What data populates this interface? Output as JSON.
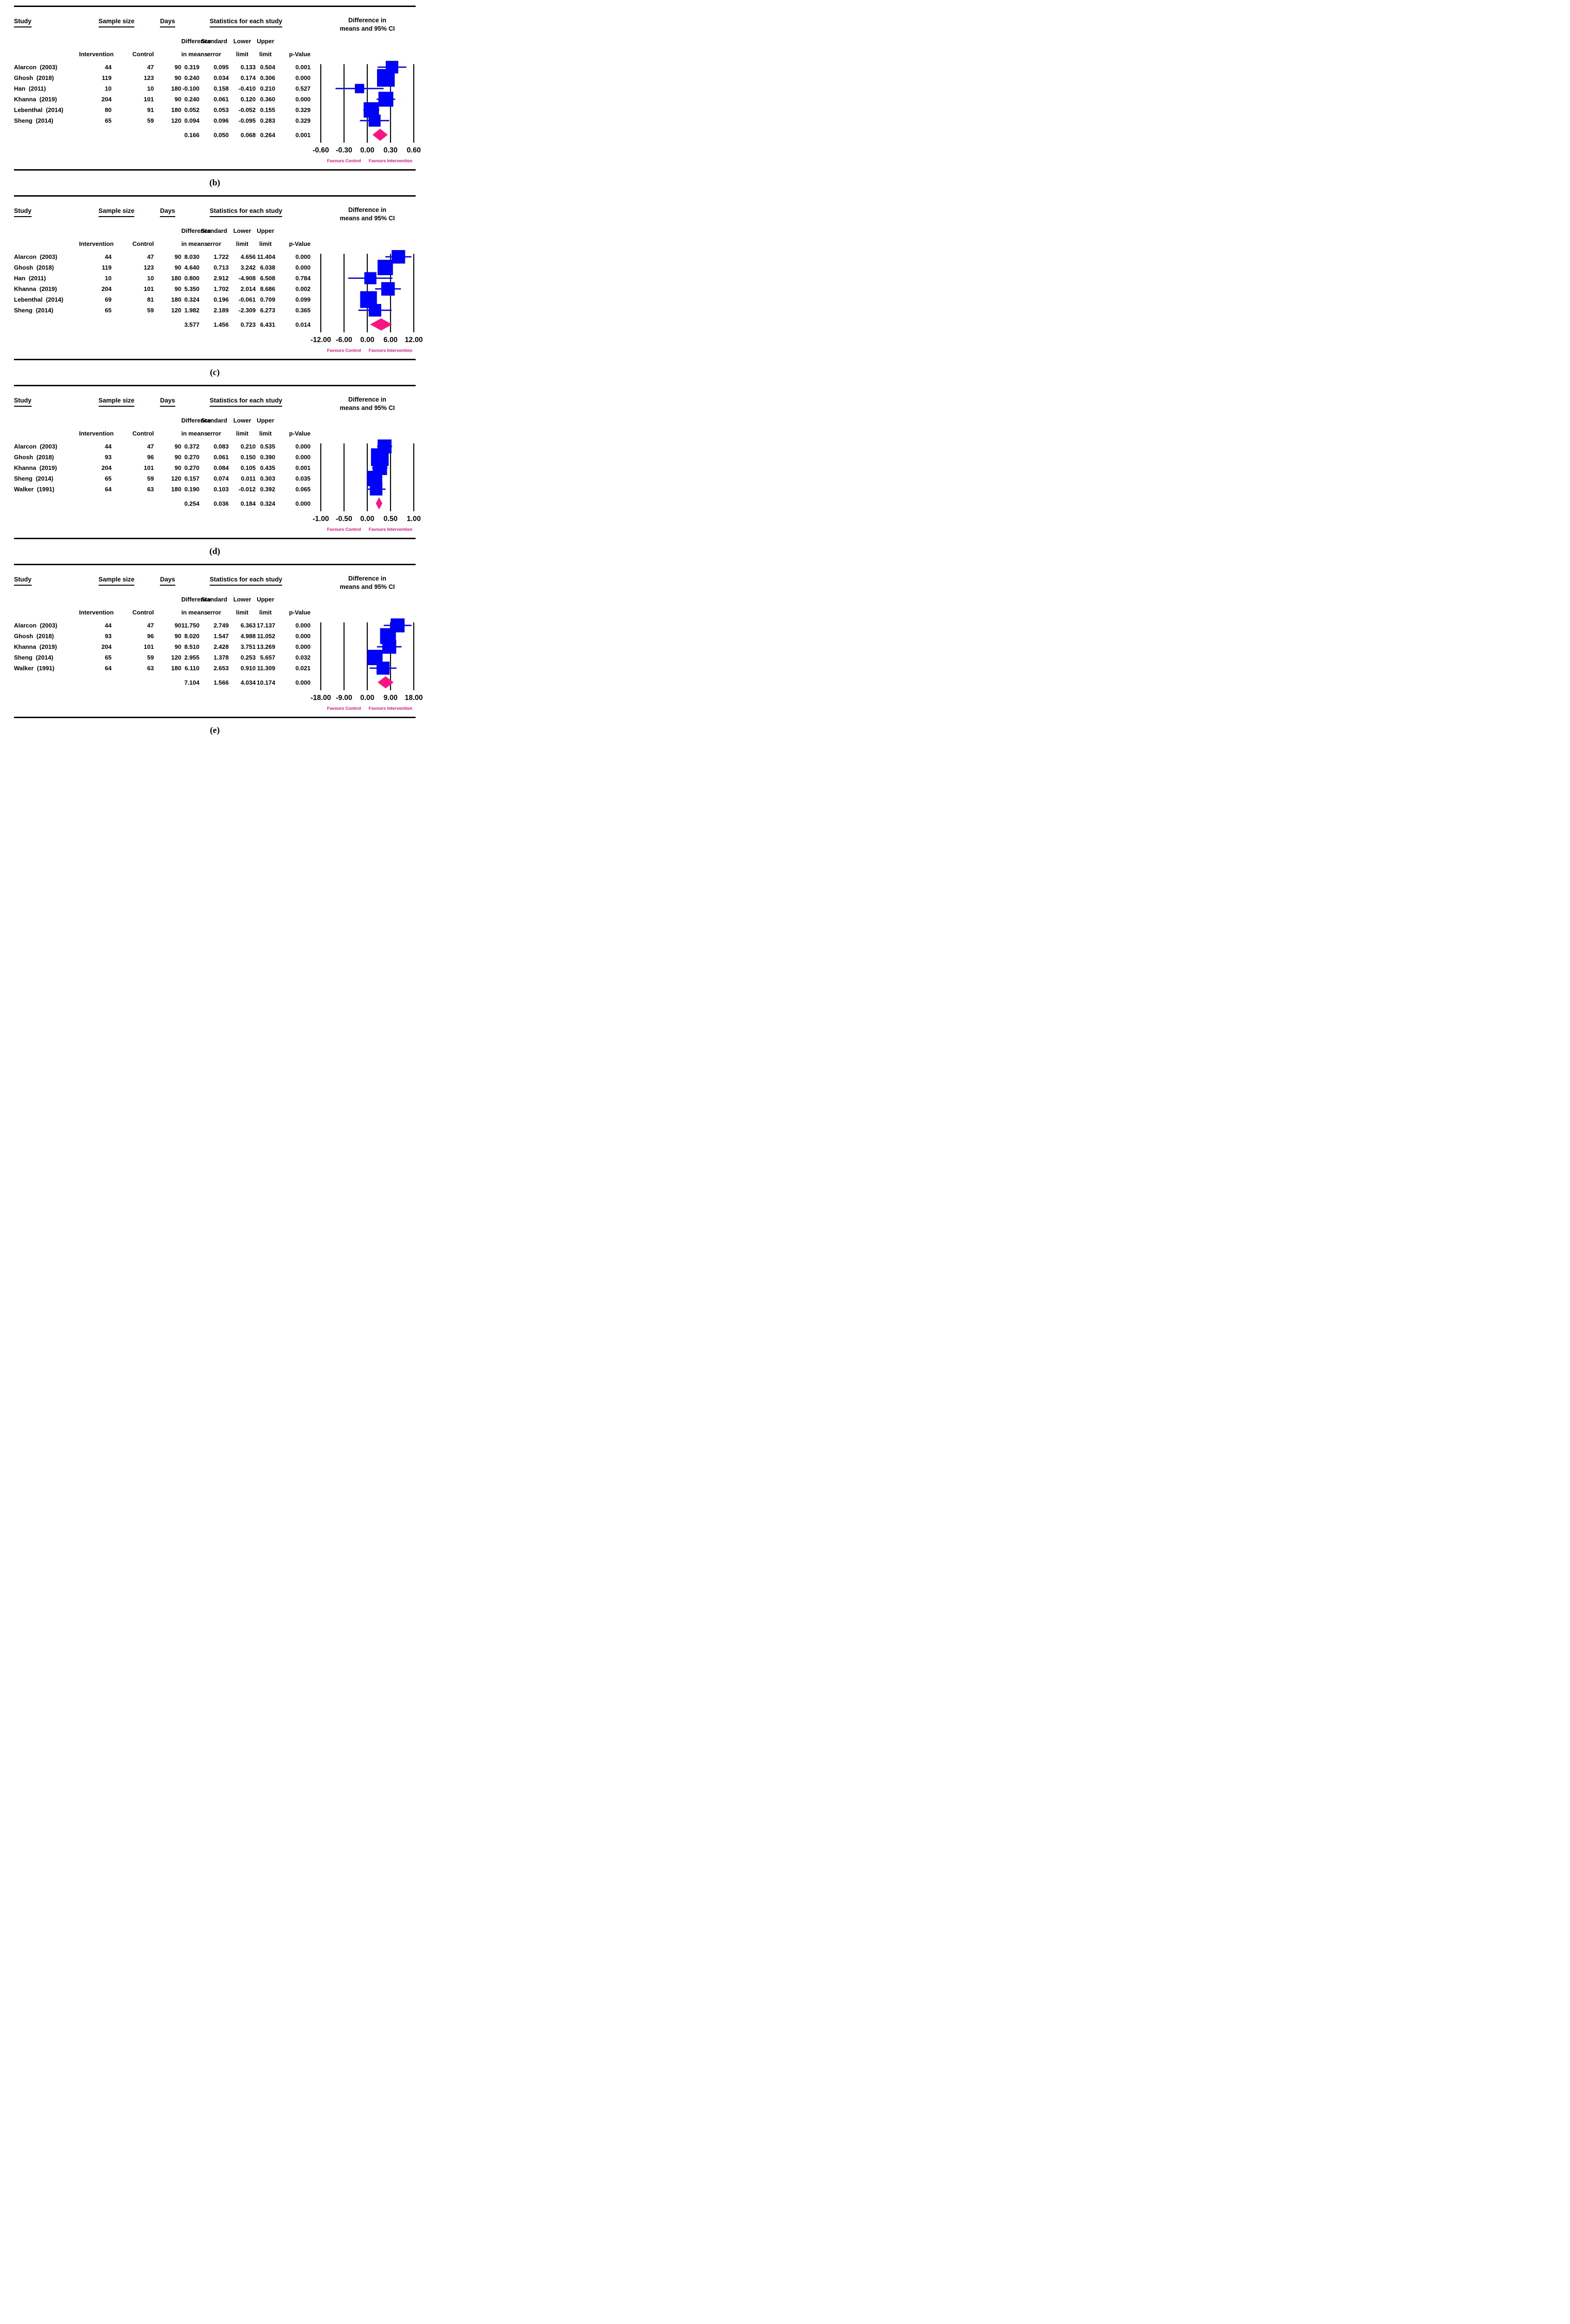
{
  "colors": {
    "square_blue": "#0000FF",
    "ci_line_blue": "#1414FF",
    "diamond_pink": "#FB1383",
    "favours_pink": "#FB1383",
    "gridline_black": "#000000",
    "text_black": "#000000"
  },
  "headers": {
    "study": "Study",
    "sample_size": "Sample size",
    "days": "Days",
    "stats": "Statistics for each study",
    "plot_line1": "Difference in",
    "plot_line2": "means and 95% CI",
    "sub_diff_1": "Difference",
    "sub_se_1": "Standard",
    "sub_lower_1": "Lower",
    "sub_upper_1": "Upper",
    "sub_intervention": "Intervention",
    "sub_control": "Control",
    "sub_diff_2": "in means",
    "sub_se_2": "error",
    "sub_lower_2": "limit",
    "sub_upper_2": "limit",
    "sub_p": "p-Value"
  },
  "chart_data": [
    {
      "type": "forest",
      "caption": "(b)",
      "axis": {
        "ticks": [
          -0.6,
          -0.3,
          0,
          0.3,
          0.6
        ],
        "tick_labels": [
          "-0.60",
          "-0.30",
          "0.00",
          "0.30",
          "0.60"
        ],
        "max": 0.6
      },
      "favours": {
        "left": "Favours Control",
        "right": "Favours Intervention"
      },
      "studies": [
        {
          "study": "Alarcon  (2003)",
          "intervention": "44",
          "control": "47",
          "days": "90",
          "diff": "0.319",
          "se": "0.095",
          "lower": "0.133",
          "upper": "0.504",
          "p": "0.001",
          "sq": 27
        },
        {
          "study": "Ghosh  (2018)",
          "intervention": "119",
          "control": "123",
          "days": "90",
          "diff": "0.240",
          "se": "0.034",
          "lower": "0.174",
          "upper": "0.306",
          "p": "0.000",
          "sq": 38
        },
        {
          "study": "Han  (2011)",
          "intervention": "10",
          "control": "10",
          "days": "180",
          "diff": "-0.100",
          "se": "0.158",
          "lower": "-0.410",
          "upper": "0.210",
          "p": "0.527",
          "sq": 20
        },
        {
          "study": "Khanna  (2019)",
          "intervention": "204",
          "control": "101",
          "days": "90",
          "diff": "0.240",
          "se": "0.061",
          "lower": "0.120",
          "upper": "0.360",
          "p": "0.000",
          "sq": 32
        },
        {
          "study": "Lebenthal  (2014)",
          "intervention": "80",
          "control": "91",
          "days": "180",
          "diff": "0.052",
          "se": "0.053",
          "lower": "-0.052",
          "upper": "0.155",
          "p": "0.329",
          "sq": 33
        },
        {
          "study": "Sheng  (2014)",
          "intervention": "65",
          "control": "59",
          "days": "120",
          "diff": "0.094",
          "se": "0.096",
          "lower": "-0.095",
          "upper": "0.283",
          "p": "0.329",
          "sq": 26
        }
      ],
      "summary": {
        "diff": "0.166",
        "se": "0.050",
        "lower": "0.068",
        "upper": "0.264",
        "p": "0.001"
      }
    },
    {
      "type": "forest",
      "caption": "(c)",
      "axis": {
        "ticks": [
          -12,
          -6,
          0,
          6,
          12
        ],
        "tick_labels": [
          "-12.00",
          "-6.00",
          "0.00",
          "6.00",
          "12.00"
        ],
        "max": 12
      },
      "favours": {
        "left": "Favours Control",
        "right": "Favours Intervention"
      },
      "studies": [
        {
          "study": "Alarcon  (2003)",
          "intervention": "44",
          "control": "47",
          "days": "90",
          "diff": "8.030",
          "se": "1.722",
          "lower": "4.656",
          "upper": "11.404",
          "p": "0.000",
          "sq": 29
        },
        {
          "study": "Ghosh  (2018)",
          "intervention": "119",
          "control": "123",
          "days": "90",
          "diff": "4.640",
          "se": "0.713",
          "lower": "3.242",
          "upper": "6.038",
          "p": "0.000",
          "sq": 33
        },
        {
          "study": "Han  (2011)",
          "intervention": "10",
          "control": "10",
          "days": "180",
          "diff": "0.800",
          "se": "2.912",
          "lower": "-4.908",
          "upper": "6.508",
          "p": "0.784",
          "sq": 26
        },
        {
          "study": "Khanna  (2019)",
          "intervention": "204",
          "control": "101",
          "days": "90",
          "diff": "5.350",
          "se": "1.702",
          "lower": "2.014",
          "upper": "8.686",
          "p": "0.002",
          "sq": 29
        },
        {
          "study": "Lebenthal  (2014)",
          "intervention": "69",
          "control": "81",
          "days": "180",
          "diff": "0.324",
          "se": "0.196",
          "lower": "-0.061",
          "upper": "0.709",
          "p": "0.099",
          "sq": 36
        },
        {
          "study": "Sheng  (2014)",
          "intervention": "65",
          "control": "59",
          "days": "120",
          "diff": "1.982",
          "se": "2.189",
          "lower": "-2.309",
          "upper": "6.273",
          "p": "0.365",
          "sq": 27
        }
      ],
      "summary": {
        "diff": "3.577",
        "se": "1.456",
        "lower": "0.723",
        "upper": "6.431",
        "p": "0.014"
      }
    },
    {
      "type": "forest",
      "caption": "(d)",
      "axis": {
        "ticks": [
          -1,
          -0.5,
          0,
          0.5,
          1
        ],
        "tick_labels": [
          "-1.00",
          "-0.50",
          "0.00",
          "0.50",
          "1.00"
        ],
        "max": 1
      },
      "favours": {
        "left": "Favours Control",
        "right": "Favours Intervention"
      },
      "studies": [
        {
          "study": "Alarcon  (2003)",
          "intervention": "44",
          "control": "47",
          "days": "90",
          "diff": "0.372",
          "se": "0.083",
          "lower": "0.210",
          "upper": "0.535",
          "p": "0.000",
          "sq": 30
        },
        {
          "study": "Ghosh  (2018)",
          "intervention": "93",
          "control": "96",
          "days": "90",
          "diff": "0.270",
          "se": "0.061",
          "lower": "0.150",
          "upper": "0.390",
          "p": "0.000",
          "sq": 38
        },
        {
          "study": "Khanna  (2019)",
          "intervention": "204",
          "control": "101",
          "days": "90",
          "diff": "0.270",
          "se": "0.084",
          "lower": "0.105",
          "upper": "0.435",
          "p": "0.001",
          "sq": 31
        },
        {
          "study": "Sheng  (2014)",
          "intervention": "65",
          "control": "59",
          "days": "120",
          "diff": "0.157",
          "se": "0.074",
          "lower": "0.011",
          "upper": "0.303",
          "p": "0.035",
          "sq": 33
        },
        {
          "study": "Walker  (1991)",
          "intervention": "64",
          "control": "63",
          "days": "180",
          "diff": "0.190",
          "se": "0.103",
          "lower": "-0.012",
          "upper": "0.392",
          "p": "0.065",
          "sq": 27
        }
      ],
      "summary": {
        "diff": "0.254",
        "se": "0.036",
        "lower": "0.184",
        "upper": "0.324",
        "p": "0.000"
      }
    },
    {
      "type": "forest",
      "caption": "(e)",
      "axis": {
        "ticks": [
          -18,
          -9,
          0,
          9,
          18
        ],
        "tick_labels": [
          "-18.00",
          "-9.00",
          "0.00",
          "9.00",
          "18.00"
        ],
        "max": 18
      },
      "favours": {
        "left": "Favours Control",
        "right": "Favours Intervention"
      },
      "studies": [
        {
          "study": "Alarcon  (2003)",
          "intervention": "44",
          "control": "47",
          "days": "90",
          "diff": "11.750",
          "se": "2.749",
          "lower": "6.363",
          "upper": "17.137",
          "p": "0.000",
          "sq": 30
        },
        {
          "study": "Ghosh  (2018)",
          "intervention": "93",
          "control": "96",
          "days": "90",
          "diff": "8.020",
          "se": "1.547",
          "lower": "4.988",
          "upper": "11.052",
          "p": "0.000",
          "sq": 34
        },
        {
          "study": "Khanna  (2019)",
          "intervention": "204",
          "control": "101",
          "days": "90",
          "diff": "8.510",
          "se": "2.428",
          "lower": "3.751",
          "upper": "13.269",
          "p": "0.000",
          "sq": 30
        },
        {
          "study": "Sheng  (2014)",
          "intervention": "65",
          "control": "59",
          "days": "120",
          "diff": "2.955",
          "se": "1.378",
          "lower": "0.253",
          "upper": "5.657",
          "p": "0.032",
          "sq": 33
        },
        {
          "study": "Walker  (1991)",
          "intervention": "64",
          "control": "63",
          "days": "180",
          "diff": "6.110",
          "se": "2.653",
          "lower": "0.910",
          "upper": "11.309",
          "p": "0.021",
          "sq": 28
        }
      ],
      "summary": {
        "diff": "7.104",
        "se": "1.566",
        "lower": "4.034",
        "upper": "10.174",
        "p": "0.000"
      }
    }
  ]
}
